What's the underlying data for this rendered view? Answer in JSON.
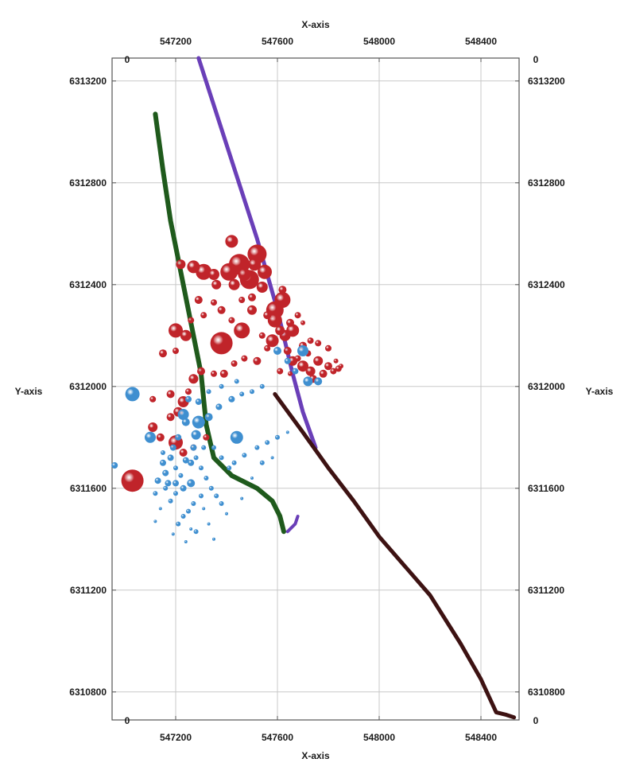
{
  "chart_data": {
    "type": "scatter",
    "title": "",
    "xlabel_top": "X-axis",
    "xlabel_bottom": "X-axis",
    "ylabel_left": "Y-axis",
    "ylabel_right": "Y-axis",
    "xlim": [
      546950,
      548550
    ],
    "ylim": [
      6310690,
      6313290
    ],
    "x_ticks": [
      547200,
      547600,
      548000,
      548400
    ],
    "y_ticks": [
      6310800,
      6311200,
      6311600,
      6312000,
      6312400,
      6312800,
      6313200
    ],
    "x_tick_labels": [
      "547200",
      "547600",
      "548000",
      "548400"
    ],
    "y_tick_labels": [
      "6310800",
      "6311200",
      "6311600",
      "6312000",
      "6312400",
      "6312800",
      "6313200"
    ],
    "corner_labels": {
      "top_left": "0",
      "bottom_left": "0",
      "top_right": "0",
      "bottom_right": "0"
    },
    "grid": true,
    "colors": {
      "red_events": "#c0242a",
      "blue_events": "#3f8fd0",
      "green_well": "#1f5a1c",
      "purple_well": "#6a3fb8",
      "maroon_well": "#3d1212"
    },
    "series": [
      {
        "kind": "line",
        "color": "#1f5a1c",
        "width": 6,
        "points": [
          [
            547120,
            6313070
          ],
          [
            547150,
            6312850
          ],
          [
            547180,
            6312650
          ],
          [
            547220,
            6312450
          ],
          [
            547260,
            6312250
          ],
          [
            547300,
            6312050
          ],
          [
            547320,
            6311850
          ],
          [
            547350,
            6311720
          ],
          [
            547420,
            6311650
          ],
          [
            547520,
            6311600
          ],
          [
            547580,
            6311550
          ],
          [
            547610,
            6311490
          ],
          [
            547625,
            6311430
          ]
        ]
      },
      {
        "kind": "line",
        "color": "#6a3fb8",
        "width": 5,
        "points": [
          [
            547290,
            6313290
          ],
          [
            547400,
            6312950
          ],
          [
            547520,
            6312580
          ],
          [
            547600,
            6312300
          ],
          [
            547660,
            6312050
          ],
          [
            547700,
            6311900
          ],
          [
            547750,
            6311760
          ]
        ]
      },
      {
        "kind": "line",
        "color": "#3d1212",
        "width": 5,
        "points": [
          [
            547590,
            6311970
          ],
          [
            547700,
            6311820
          ],
          [
            547800,
            6311680
          ],
          [
            547900,
            6311550
          ],
          [
            548000,
            6311410
          ],
          [
            548200,
            6311180
          ],
          [
            548320,
            6310990
          ],
          [
            548400,
            6310850
          ],
          [
            548460,
            6310720
          ],
          [
            548500,
            6310710
          ],
          [
            548530,
            6310700
          ]
        ]
      },
      {
        "kind": "line",
        "color": "#6a3fb8",
        "width": 4,
        "points": [
          [
            547640,
            6311430
          ],
          [
            547670,
            6311460
          ],
          [
            547680,
            6311490
          ]
        ]
      },
      {
        "kind": "scatter",
        "color": "#c0242a",
        "points": [
          [
            547030,
            6311630,
            14
          ],
          [
            547380,
            6312170,
            14
          ],
          [
            547450,
            6312480,
            13
          ],
          [
            547490,
            6312420,
            12
          ],
          [
            547520,
            6312520,
            12
          ],
          [
            547410,
            6312450,
            11
          ],
          [
            547310,
            6312450,
            10
          ],
          [
            547590,
            6312300,
            11
          ],
          [
            547590,
            6312260,
            9
          ],
          [
            547620,
            6312340,
            10
          ],
          [
            547660,
            6312220,
            8
          ],
          [
            547550,
            6312450,
            9
          ],
          [
            547470,
            6312440,
            8
          ],
          [
            547350,
            6312440,
            7
          ],
          [
            547360,
            6312400,
            6
          ],
          [
            547430,
            6312400,
            7
          ],
          [
            547510,
            6312480,
            8
          ],
          [
            547540,
            6312390,
            7
          ],
          [
            547420,
            6312570,
            8
          ],
          [
            547270,
            6312470,
            8
          ],
          [
            547220,
            6312480,
            6
          ],
          [
            547200,
            6312220,
            9
          ],
          [
            547240,
            6312200,
            7
          ],
          [
            547460,
            6312220,
            10
          ],
          [
            547500,
            6312300,
            6
          ],
          [
            547580,
            6312180,
            8
          ],
          [
            547630,
            6312200,
            7
          ],
          [
            547660,
            6312100,
            6
          ],
          [
            547700,
            6312080,
            7
          ],
          [
            547730,
            6312060,
            6
          ],
          [
            547740,
            6312030,
            5
          ],
          [
            547760,
            6312100,
            6
          ],
          [
            547780,
            6312050,
            5
          ],
          [
            547800,
            6312080,
            5
          ],
          [
            547820,
            6312060,
            4
          ],
          [
            547840,
            6312070,
            4
          ],
          [
            547700,
            6312160,
            5
          ],
          [
            547730,
            6312180,
            4
          ],
          [
            547650,
            6312250,
            5
          ],
          [
            547610,
            6312220,
            6
          ],
          [
            547560,
            6312150,
            4
          ],
          [
            547520,
            6312100,
            5
          ],
          [
            547470,
            6312110,
            4
          ],
          [
            547430,
            6312090,
            4
          ],
          [
            547390,
            6312050,
            5
          ],
          [
            547350,
            6312050,
            4
          ],
          [
            547300,
            6312060,
            5
          ],
          [
            547270,
            6312030,
            6
          ],
          [
            547230,
            6311940,
            7
          ],
          [
            547210,
            6311900,
            6
          ],
          [
            547180,
            6311880,
            5
          ],
          [
            547110,
            6311840,
            6
          ],
          [
            547140,
            6311800,
            5
          ],
          [
            547200,
            6311780,
            9
          ],
          [
            547230,
            6311740,
            5
          ],
          [
            547270,
            6311760,
            4
          ],
          [
            547320,
            6311800,
            4
          ],
          [
            547200,
            6312140,
            4
          ],
          [
            547150,
            6312130,
            5
          ],
          [
            547310,
            6312280,
            4
          ],
          [
            547290,
            6312340,
            5
          ],
          [
            547350,
            6312330,
            4
          ],
          [
            547380,
            6312300,
            5
          ],
          [
            547460,
            6312340,
            4
          ],
          [
            547500,
            6312350,
            5
          ],
          [
            547640,
            6312140,
            5
          ],
          [
            547680,
            6312110,
            4
          ],
          [
            547720,
            6312130,
            4
          ],
          [
            547760,
            6312170,
            4
          ],
          [
            547800,
            6312150,
            4
          ],
          [
            547830,
            6312100,
            3
          ],
          [
            547850,
            6312080,
            3
          ],
          [
            547680,
            6312280,
            4
          ],
          [
            547700,
            6312250,
            3
          ],
          [
            547620,
            6312380,
            5
          ],
          [
            547260,
            6312260,
            4
          ],
          [
            547110,
            6311950,
            4
          ],
          [
            547180,
            6311970,
            5
          ],
          [
            547250,
            6311980,
            4
          ],
          [
            547420,
            6312260,
            4
          ],
          [
            547560,
            6312280,
            5
          ],
          [
            547540,
            6312200,
            4
          ],
          [
            547610,
            6312060,
            4
          ],
          [
            547650,
            6312050,
            3
          ]
        ]
      },
      {
        "kind": "scatter",
        "color": "#3f8fd0",
        "points": [
          [
            547030,
            6311970,
            9
          ],
          [
            547100,
            6311800,
            7
          ],
          [
            547290,
            6311860,
            8
          ],
          [
            547440,
            6311800,
            8
          ],
          [
            547700,
            6312140,
            7
          ],
          [
            547720,
            6312020,
            6
          ],
          [
            546960,
            6311690,
            4
          ],
          [
            547260,
            6311620,
            5
          ],
          [
            547230,
            6311890,
            7
          ],
          [
            547280,
            6311810,
            6
          ],
          [
            547330,
            6311880,
            5
          ],
          [
            547370,
            6311920,
            4
          ],
          [
            547420,
            6311950,
            4
          ],
          [
            547460,
            6311970,
            3
          ],
          [
            547500,
            6311980,
            3
          ],
          [
            547540,
            6312000,
            3
          ],
          [
            547600,
            6312140,
            5
          ],
          [
            547640,
            6312100,
            4
          ],
          [
            547670,
            6312060,
            4
          ],
          [
            547760,
            6312020,
            5
          ],
          [
            547150,
            6311700,
            4
          ],
          [
            547160,
            6311660,
            4
          ],
          [
            547170,
            6311620,
            4
          ],
          [
            547130,
            6311630,
            4
          ],
          [
            547180,
            6311720,
            4
          ],
          [
            547200,
            6311680,
            3
          ],
          [
            547220,
            6311650,
            3
          ],
          [
            547240,
            6311710,
            4
          ],
          [
            547260,
            6311700,
            4
          ],
          [
            547280,
            6311720,
            3
          ],
          [
            547300,
            6311680,
            3
          ],
          [
            547320,
            6311640,
            3
          ],
          [
            547340,
            6311600,
            3
          ],
          [
            547360,
            6311570,
            3
          ],
          [
            547380,
            6311540,
            3
          ],
          [
            547300,
            6311570,
            3
          ],
          [
            547270,
            6311540,
            3
          ],
          [
            547250,
            6311510,
            3
          ],
          [
            547230,
            6311490,
            3
          ],
          [
            547210,
            6311460,
            3
          ],
          [
            547190,
            6311420,
            2
          ],
          [
            547240,
            6311390,
            2
          ],
          [
            547280,
            6311430,
            3
          ],
          [
            547330,
            6311460,
            2
          ],
          [
            547400,
            6311500,
            2
          ],
          [
            547460,
            6311560,
            2
          ],
          [
            547500,
            6311640,
            2
          ],
          [
            547430,
            6311700,
            3
          ],
          [
            547470,
            6311730,
            3
          ],
          [
            547520,
            6311760,
            3
          ],
          [
            547560,
            6311780,
            3
          ],
          [
            547600,
            6311800,
            3
          ],
          [
            547640,
            6311820,
            2
          ],
          [
            547540,
            6311700,
            3
          ],
          [
            547580,
            6311720,
            2
          ],
          [
            547200,
            6311580,
            3
          ],
          [
            547180,
            6311550,
            3
          ],
          [
            547160,
            6311600,
            3
          ],
          [
            547120,
            6311580,
            3
          ],
          [
            547140,
            6311520,
            2
          ],
          [
            547120,
            6311470,
            2
          ],
          [
            547260,
            6311440,
            2
          ],
          [
            547310,
            6311520,
            2
          ],
          [
            547350,
            6311400,
            2
          ],
          [
            547290,
            6311940,
            4
          ],
          [
            547250,
            6311950,
            4
          ],
          [
            547330,
            6311980,
            3
          ],
          [
            547380,
            6312000,
            3
          ],
          [
            547440,
            6312020,
            3
          ],
          [
            547240,
            6311860,
            5
          ],
          [
            547210,
            6311800,
            4
          ],
          [
            547190,
            6311760,
            4
          ],
          [
            547270,
            6311760,
            4
          ],
          [
            547310,
            6311760,
            3
          ],
          [
            547350,
            6311760,
            3
          ],
          [
            547380,
            6311720,
            3
          ],
          [
            547410,
            6311680,
            3
          ],
          [
            547230,
            6311600,
            4
          ],
          [
            547200,
            6311620,
            4
          ],
          [
            547150,
            6311740,
            3
          ]
        ]
      }
    ]
  }
}
